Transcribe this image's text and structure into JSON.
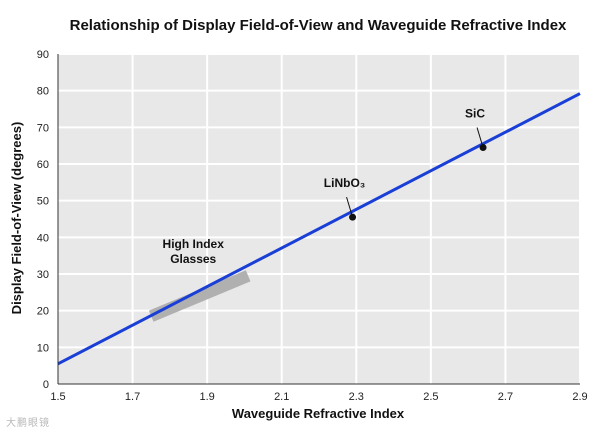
{
  "chart_data": {
    "type": "line",
    "title": "Relationship of Display Field-of-View and Waveguide Refractive Index",
    "xlabel": "Waveguide Refractive Index",
    "ylabel": "Display Field-of-View (degrees)",
    "xlim": [
      1.5,
      2.9
    ],
    "ylim": [
      0,
      90
    ],
    "x_ticks": [
      "1.5",
      "1.7",
      "1.9",
      "2.1",
      "2.3",
      "2.5",
      "2.7",
      "2.9"
    ],
    "y_ticks": [
      "0",
      "10",
      "20",
      "30",
      "40",
      "50",
      "60",
      "70",
      "80",
      "90"
    ],
    "grid": true,
    "series": [
      {
        "x": [
          1.5,
          2.9
        ],
        "y": [
          5.5,
          79.2
        ],
        "color": "#1a3fd6"
      }
    ],
    "points": [
      {
        "label": "LiNbO₃",
        "x": 2.29,
        "y": 45.5
      },
      {
        "label": "SiC",
        "x": 2.64,
        "y": 64.5
      }
    ],
    "bands": [
      {
        "label": "High Index Glasses",
        "label_lines": [
          "High Index",
          "Glasses"
        ],
        "x_range": [
          1.75,
          2.01
        ],
        "y_start": 18.5,
        "y_end": 29.5,
        "color": "#b0b0b0"
      }
    ],
    "background_color": "#e8e8e8"
  },
  "watermark": "大鹏眼镜"
}
